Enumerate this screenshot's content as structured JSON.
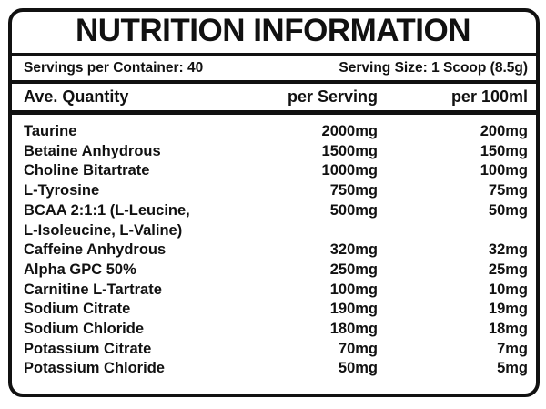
{
  "header": {
    "title": "NUTRITION INFORMATION"
  },
  "servings": {
    "per_container": "Servings per Container: 40",
    "size": "Serving Size: 1 Scoop (8.5g)"
  },
  "table": {
    "columns": [
      "Ave. Quantity",
      "per Serving",
      "per 100ml"
    ],
    "rows": [
      [
        "Taurine",
        "2000mg",
        "200mg"
      ],
      [
        "Betaine Anhydrous",
        "1500mg",
        "150mg"
      ],
      [
        "Choline Bitartrate",
        "1000mg",
        "100mg"
      ],
      [
        "L-Tyrosine",
        "750mg",
        "75mg"
      ],
      [
        "BCAA 2:1:1 (L-Leucine,\nL-Isoleucine, L-Valine)",
        "500mg",
        "50mg"
      ],
      [
        "Caffeine Anhydrous",
        "320mg",
        "32mg"
      ],
      [
        "Alpha GPC 50%",
        "250mg",
        "25mg"
      ],
      [
        "Carnitine L-Tartrate",
        "100mg",
        "10mg"
      ],
      [
        "Sodium Citrate",
        "190mg",
        "19mg"
      ],
      [
        "Sodium Chloride",
        "180mg",
        "18mg"
      ],
      [
        "Potassium Citrate",
        "70mg",
        "7mg"
      ],
      [
        "Potassium Chloride",
        "50mg",
        "5mg"
      ]
    ]
  }
}
